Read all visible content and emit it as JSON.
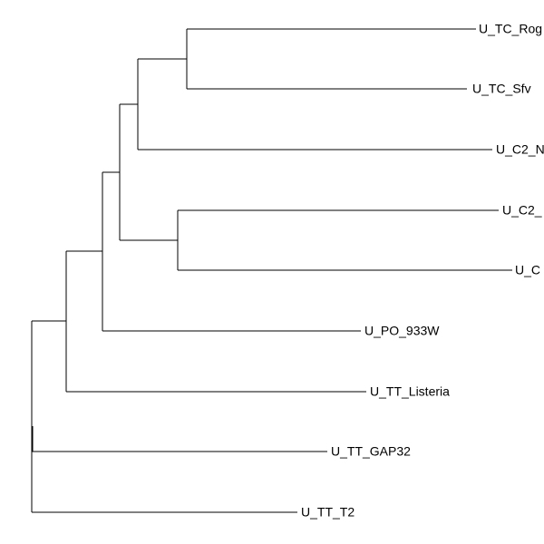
{
  "tips": [
    {
      "label": "U_TC_Rog"
    },
    {
      "label": "U_TC_Sfv"
    },
    {
      "label": "U_C2_N"
    },
    {
      "label": "U_C2_"
    },
    {
      "label": "U_C"
    },
    {
      "label": "U_PO_933W"
    },
    {
      "label": "U_TT_Listeria"
    },
    {
      "label": "U_TT_GAP32"
    },
    {
      "label": "U_TT_T2"
    }
  ]
}
